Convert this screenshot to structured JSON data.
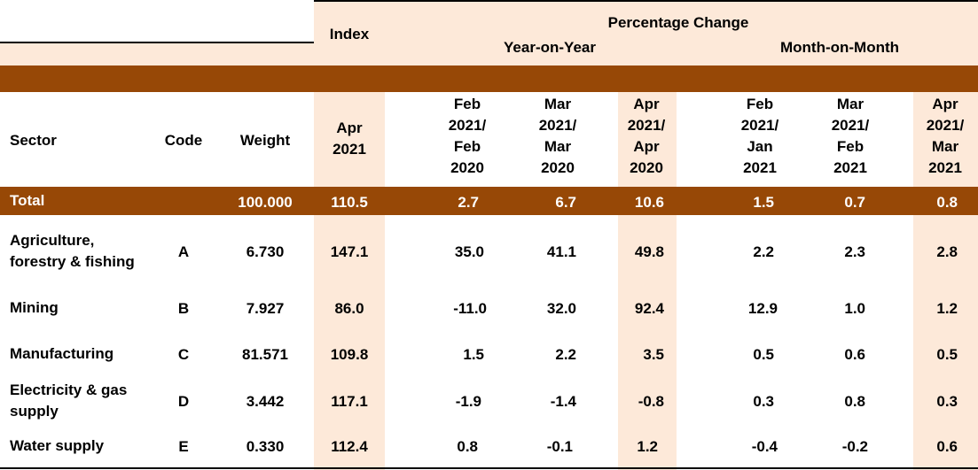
{
  "header": {
    "index_label": "Index",
    "percentage_change_label": "Percentage Change",
    "yoy_label": "Year-on-Year",
    "mom_label": "Month-on-Month"
  },
  "columns": {
    "sector": "Sector",
    "code": "Code",
    "weight": "Weight",
    "index_period": [
      "Apr",
      "2021"
    ],
    "yoy": [
      [
        "Feb",
        "2021/",
        "Feb",
        "2020"
      ],
      [
        "Mar",
        "2021/",
        "Mar",
        "2020"
      ],
      [
        "Apr",
        "2021/",
        "Apr",
        "2020"
      ]
    ],
    "mom": [
      [
        "Feb",
        "2021/",
        "Jan",
        "2021"
      ],
      [
        "Mar",
        "2021/",
        "Feb",
        "2021"
      ],
      [
        "Apr",
        "2021/",
        "Mar",
        "2021"
      ]
    ]
  },
  "total": {
    "sector": "Total",
    "weight": "100.000",
    "index": "110.5",
    "yoy": [
      "2.7",
      "6.7",
      "10.6"
    ],
    "mom": [
      "1.5",
      "0.7",
      "0.8"
    ]
  },
  "rows": [
    {
      "sector": [
        "Agriculture,",
        "forestry & fishing"
      ],
      "code": "A",
      "weight": "6.730",
      "index": "147.1",
      "yoy": [
        "35.0",
        "41.1",
        "49.8"
      ],
      "mom": [
        "2.2",
        "2.3",
        "2.8"
      ]
    },
    {
      "sector": [
        "Mining"
      ],
      "code": "B",
      "weight": "7.927",
      "index": "86.0",
      "yoy": [
        "-11.0",
        "32.0",
        "92.4"
      ],
      "mom": [
        "12.9",
        "1.0",
        "1.2"
      ]
    },
    {
      "sector": [
        "Manufacturing"
      ],
      "code": "C",
      "weight": "81.571",
      "index": "109.8",
      "yoy": [
        "1.5",
        "2.2",
        "3.5"
      ],
      "mom": [
        "0.5",
        "0.6",
        "0.5"
      ]
    },
    {
      "sector": [
        "Electricity & gas",
        "supply"
      ],
      "code": "D",
      "weight": "3.442",
      "index": "117.1",
      "yoy": [
        "-1.9",
        "-1.4",
        "-0.8"
      ],
      "mom": [
        "0.3",
        "0.8",
        "0.3"
      ]
    },
    {
      "sector": [
        "Water supply"
      ],
      "code": "E",
      "weight": "0.330",
      "index": "112.4",
      "yoy": [
        "0.8",
        "-0.1",
        "1.2"
      ],
      "mom": [
        "-0.4",
        "-0.2",
        "0.6"
      ]
    }
  ],
  "colors": {
    "highlight": "#fde9d9",
    "band": "#974806"
  }
}
